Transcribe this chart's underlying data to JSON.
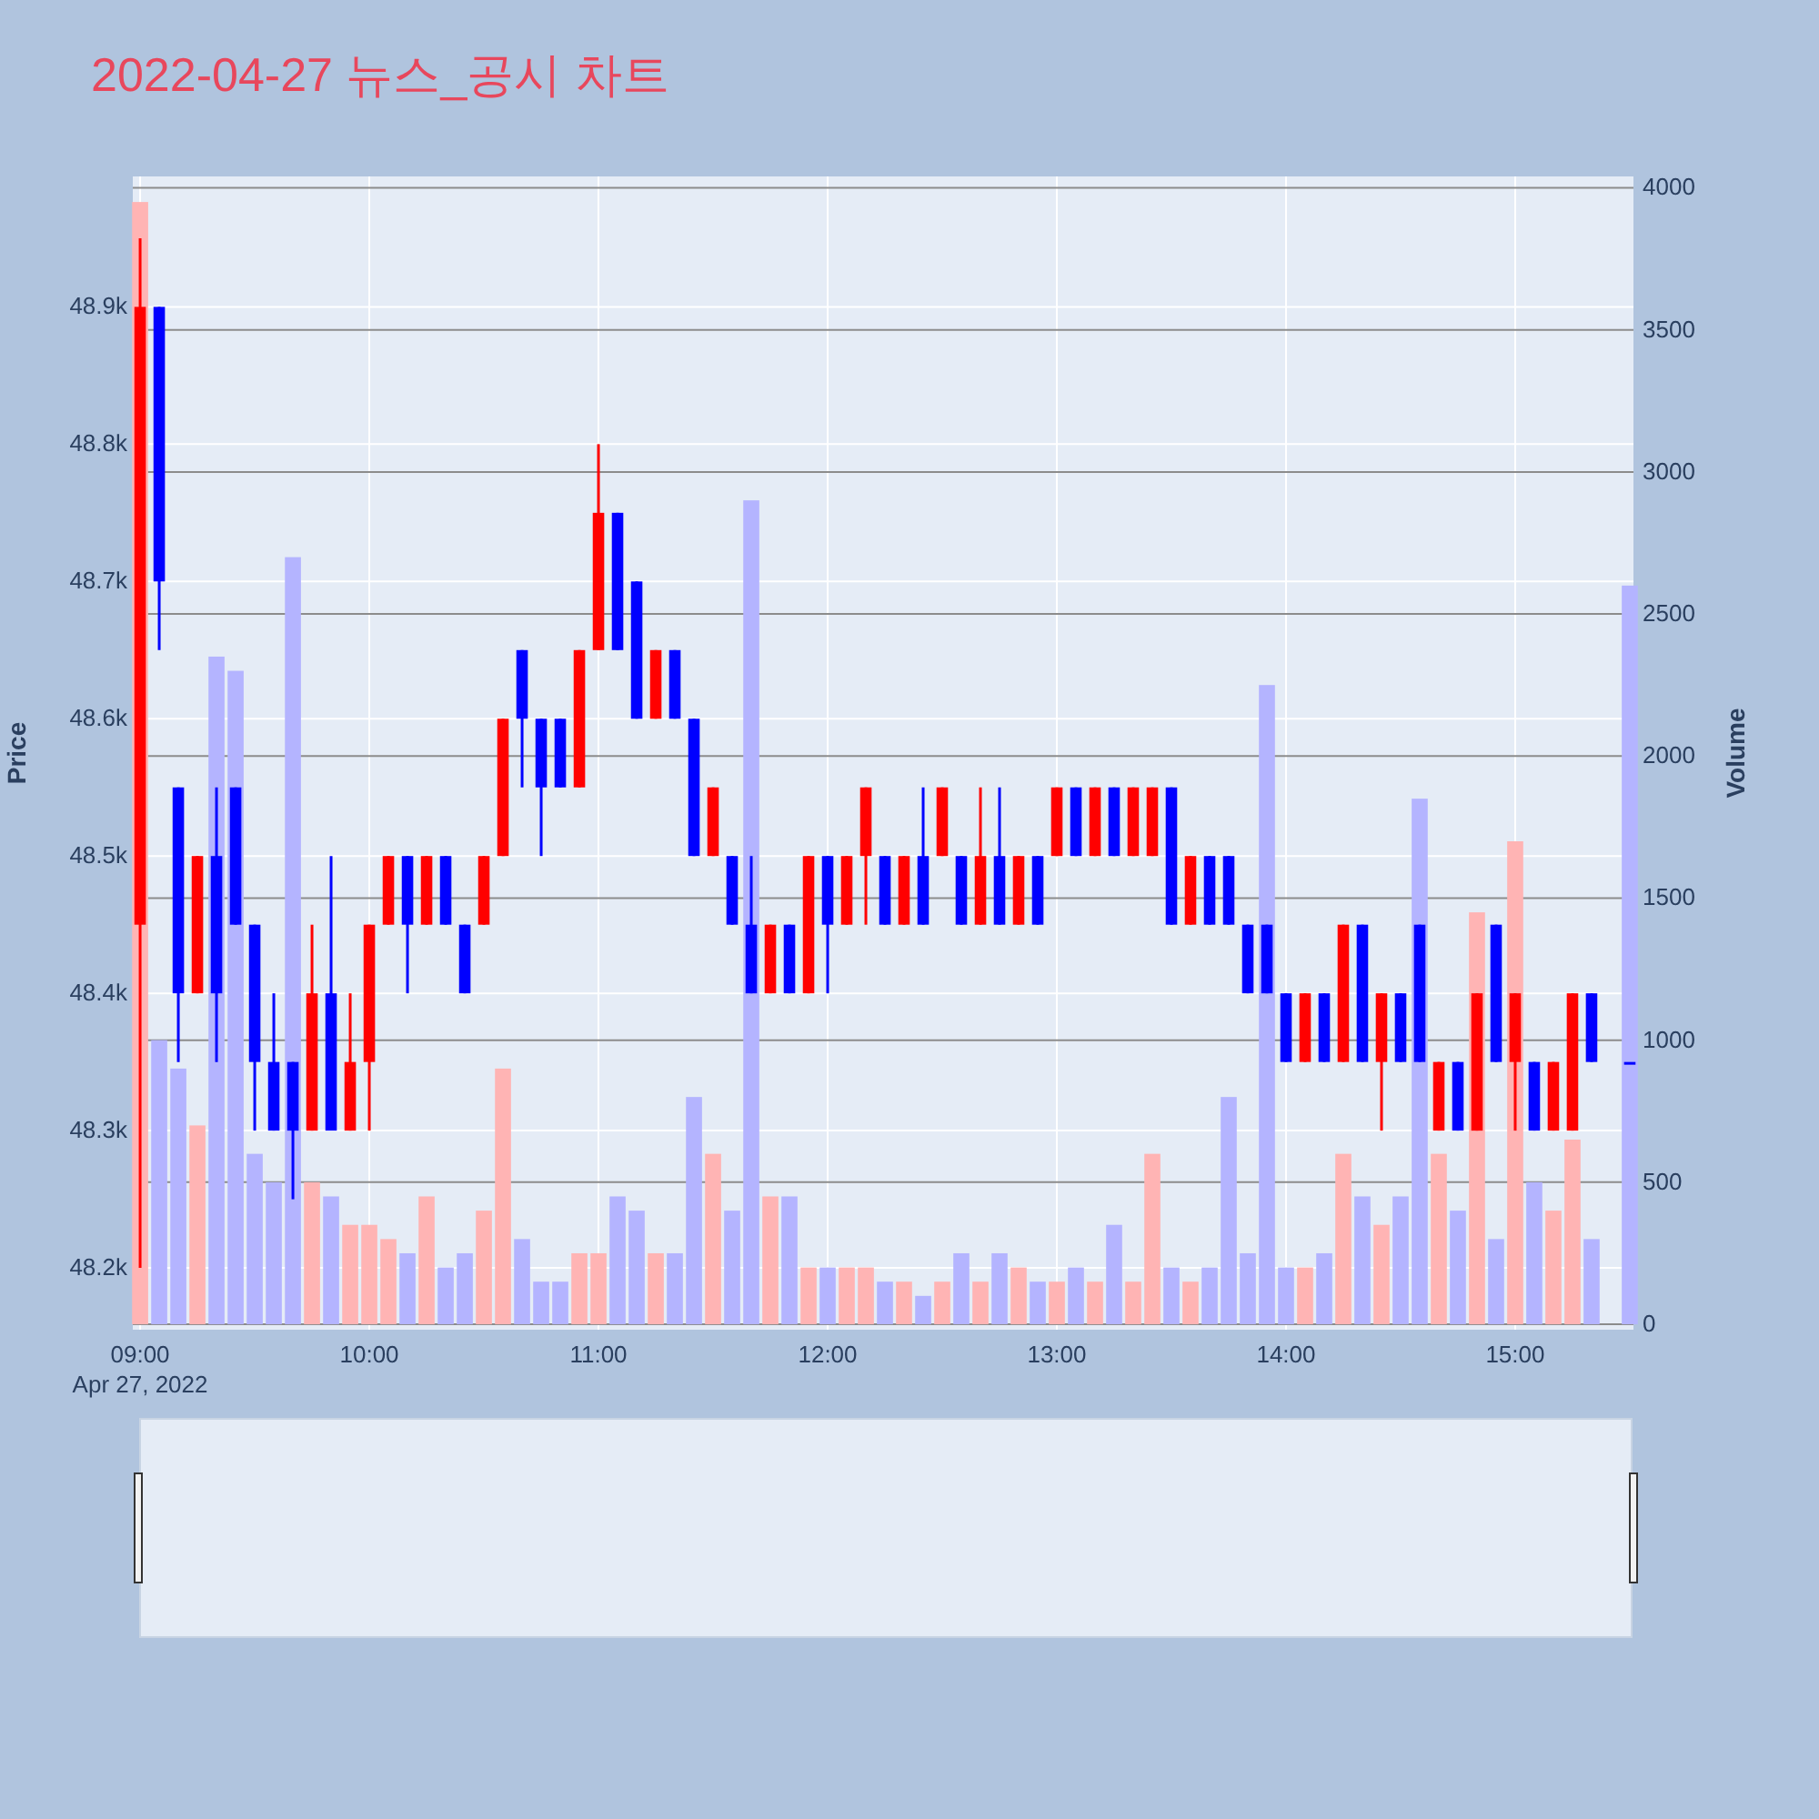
{
  "chart_data": {
    "type": "candlestick",
    "title": "2022-04-27 뉴스_공시 차트",
    "ylabel": "Price",
    "y2label": "Volume",
    "grid": true,
    "xlim": [
      8.968,
      15.516
    ],
    "xticks": [
      {
        "value": 9,
        "label": "09:00\nApr 27, 2022"
      },
      {
        "value": 10,
        "label": "10:00"
      },
      {
        "value": 11,
        "label": "11:00"
      },
      {
        "value": 12,
        "label": "12:00"
      },
      {
        "value": 13,
        "label": "13:00"
      },
      {
        "value": 14,
        "label": "14:00"
      },
      {
        "value": 15,
        "label": "15:00"
      }
    ],
    "ylim": [
      48155,
      48995
    ],
    "yticks": [
      {
        "value": 48200,
        "label": "48.2k"
      },
      {
        "value": 48300,
        "label": "48.3k"
      },
      {
        "value": 48400,
        "label": "48.4k"
      },
      {
        "value": 48500,
        "label": "48.5k"
      },
      {
        "value": 48600,
        "label": "48.6k"
      },
      {
        "value": 48700,
        "label": "48.7k"
      },
      {
        "value": 48800,
        "label": "48.8k"
      },
      {
        "value": 48900,
        "label": "48.9k"
      }
    ],
    "y2lim": [
      -19,
      4040
    ],
    "y2ticks": [
      0,
      500,
      1000,
      1500,
      2000,
      2500,
      3000,
      3500,
      4000
    ],
    "x": [
      9,
      9.0833,
      9.1667,
      9.25,
      9.3333,
      9.4167,
      9.5,
      9.5833,
      9.6667,
      9.75,
      9.8333,
      9.9167,
      10,
      10.0833,
      10.1667,
      10.25,
      10.3333,
      10.4167,
      10.5,
      10.5833,
      10.6667,
      10.75,
      10.8333,
      10.9167,
      11,
      11.0833,
      11.1667,
      11.25,
      11.3333,
      11.4167,
      11.5,
      11.5833,
      11.6667,
      11.75,
      11.8333,
      11.9167,
      12,
      12.0833,
      12.1667,
      12.25,
      12.3333,
      12.4167,
      12.5,
      12.5833,
      12.6667,
      12.75,
      12.8333,
      12.9167,
      13,
      13.0833,
      13.1667,
      13.25,
      13.3333,
      13.4167,
      13.5,
      13.5833,
      13.6667,
      13.75,
      13.8333,
      13.9167,
      14,
      14.0833,
      14.1667,
      14.25,
      14.3333,
      14.4167,
      14.5,
      14.5833,
      14.6667,
      14.75,
      14.8333,
      14.9167,
      15,
      15.0833,
      15.1667,
      15.25,
      15.3333,
      15.5
    ],
    "ohlc": [
      [
        48450,
        48950,
        48200,
        48900
      ],
      [
        48900,
        48900,
        48650,
        48700
      ],
      [
        48550,
        48550,
        48350,
        48400
      ],
      [
        48400,
        48500,
        48400,
        48500
      ],
      [
        48500,
        48550,
        48350,
        48400
      ],
      [
        48550,
        48550,
        48450,
        48450
      ],
      [
        48450,
        48450,
        48300,
        48350
      ],
      [
        48350,
        48400,
        48300,
        48300
      ],
      [
        48350,
        48350,
        48250,
        48300
      ],
      [
        48300,
        48450,
        48300,
        48400
      ],
      [
        48400,
        48500,
        48300,
        48300
      ],
      [
        48300,
        48400,
        48300,
        48350
      ],
      [
        48350,
        48450,
        48300,
        48450
      ],
      [
        48450,
        48500,
        48450,
        48500
      ],
      [
        48500,
        48500,
        48400,
        48450
      ],
      [
        48450,
        48500,
        48450,
        48500
      ],
      [
        48500,
        48500,
        48450,
        48450
      ],
      [
        48450,
        48450,
        48400,
        48400
      ],
      [
        48450,
        48500,
        48450,
        48500
      ],
      [
        48500,
        48600,
        48500,
        48600
      ],
      [
        48650,
        48650,
        48550,
        48600
      ],
      [
        48600,
        48600,
        48500,
        48550
      ],
      [
        48600,
        48600,
        48550,
        48550
      ],
      [
        48550,
        48650,
        48550,
        48650
      ],
      [
        48650,
        48800,
        48650,
        48750
      ],
      [
        48750,
        48750,
        48650,
        48650
      ],
      [
        48700,
        48700,
        48600,
        48600
      ],
      [
        48600,
        48650,
        48600,
        48650
      ],
      [
        48650,
        48650,
        48600,
        48600
      ],
      [
        48600,
        48600,
        48500,
        48500
      ],
      [
        48500,
        48550,
        48500,
        48550
      ],
      [
        48500,
        48500,
        48450,
        48450
      ],
      [
        48450,
        48500,
        48400,
        48400
      ],
      [
        48400,
        48450,
        48400,
        48450
      ],
      [
        48450,
        48450,
        48400,
        48400
      ],
      [
        48400,
        48500,
        48400,
        48500
      ],
      [
        48500,
        48500,
        48400,
        48450
      ],
      [
        48450,
        48500,
        48450,
        48500
      ],
      [
        48500,
        48550,
        48450,
        48550
      ],
      [
        48500,
        48500,
        48450,
        48450
      ],
      [
        48450,
        48500,
        48450,
        48500
      ],
      [
        48500,
        48550,
        48450,
        48450
      ],
      [
        48500,
        48550,
        48500,
        48550
      ],
      [
        48500,
        48500,
        48450,
        48450
      ],
      [
        48450,
        48550,
        48450,
        48500
      ],
      [
        48500,
        48550,
        48450,
        48450
      ],
      [
        48450,
        48500,
        48450,
        48500
      ],
      [
        48500,
        48500,
        48450,
        48450
      ],
      [
        48500,
        48550,
        48500,
        48550
      ],
      [
        48550,
        48550,
        48500,
        48500
      ],
      [
        48500,
        48550,
        48500,
        48550
      ],
      [
        48550,
        48550,
        48500,
        48500
      ],
      [
        48500,
        48550,
        48500,
        48550
      ],
      [
        48500,
        48550,
        48500,
        48550
      ],
      [
        48550,
        48550,
        48450,
        48450
      ],
      [
        48450,
        48500,
        48450,
        48500
      ],
      [
        48500,
        48500,
        48450,
        48450
      ],
      [
        48500,
        48500,
        48450,
        48450
      ],
      [
        48450,
        48450,
        48400,
        48400
      ],
      [
        48450,
        48450,
        48400,
        48400
      ],
      [
        48400,
        48400,
        48350,
        48350
      ],
      [
        48350,
        48400,
        48350,
        48400
      ],
      [
        48400,
        48400,
        48350,
        48350
      ],
      [
        48350,
        48450,
        48350,
        48450
      ],
      [
        48450,
        48450,
        48350,
        48350
      ],
      [
        48350,
        48400,
        48300,
        48400
      ],
      [
        48400,
        48400,
        48350,
        48350
      ],
      [
        48450,
        48450,
        48350,
        48350
      ],
      [
        48300,
        48350,
        48300,
        48350
      ],
      [
        48350,
        48350,
        48300,
        48300
      ],
      [
        48300,
        48400,
        48300,
        48400
      ],
      [
        48450,
        48450,
        48350,
        48350
      ],
      [
        48350,
        48400,
        48300,
        48400
      ],
      [
        48350,
        48350,
        48300,
        48300
      ],
      [
        48300,
        48350,
        48300,
        48350
      ],
      [
        48300,
        48400,
        48300,
        48400
      ],
      [
        48400,
        48400,
        48350,
        48350
      ],
      [
        48350,
        48350,
        48350,
        48350
      ]
    ],
    "colors": [
      "#ff0000",
      "#0000ff",
      "#0000ff",
      "#ff0000",
      "#0000ff",
      "#0000ff",
      "#0000ff",
      "#0000ff",
      "#0000ff",
      "#ff0000",
      "#0000ff",
      "#ff0000",
      "#ff0000",
      "#ff0000",
      "#0000ff",
      "#ff0000",
      "#0000ff",
      "#0000ff",
      "#ff0000",
      "#ff0000",
      "#0000ff",
      "#0000ff",
      "#0000ff",
      "#ff0000",
      "#ff0000",
      "#0000ff",
      "#0000ff",
      "#ff0000",
      "#0000ff",
      "#0000ff",
      "#ff0000",
      "#0000ff",
      "#0000ff",
      "#ff0000",
      "#0000ff",
      "#ff0000",
      "#0000ff",
      "#ff0000",
      "#ff0000",
      "#0000ff",
      "#ff0000",
      "#0000ff",
      "#ff0000",
      "#0000ff",
      "#ff0000",
      "#0000ff",
      "#ff0000",
      "#0000ff",
      "#ff0000",
      "#0000ff",
      "#ff0000",
      "#0000ff",
      "#ff0000",
      "#ff0000",
      "#0000ff",
      "#ff0000",
      "#0000ff",
      "#0000ff",
      "#0000ff",
      "#0000ff",
      "#0000ff",
      "#ff0000",
      "#0000ff",
      "#ff0000",
      "#0000ff",
      "#ff0000",
      "#0000ff",
      "#0000ff",
      "#ff0000",
      "#0000ff",
      "#ff0000",
      "#0000ff",
      "#ff0000",
      "#0000ff",
      "#ff0000",
      "#ff0000",
      "#0000ff",
      "#0000ff"
    ],
    "series": [
      {
        "type": "bar",
        "axis": "y2",
        "values": [
          3950,
          1000,
          900,
          700,
          2350,
          2300,
          600,
          500,
          2700,
          500,
          450,
          350,
          350,
          300,
          250,
          450,
          200,
          250,
          400,
          900,
          300,
          150,
          150,
          250,
          250,
          450,
          400,
          250,
          250,
          800,
          600,
          400,
          2900,
          450,
          450,
          200,
          200,
          200,
          200,
          150,
          150,
          100,
          150,
          250,
          150,
          250,
          200,
          150,
          150,
          200,
          150,
          350,
          150,
          600,
          200,
          150,
          200,
          800,
          250,
          2250,
          200,
          200,
          250,
          600,
          450,
          350,
          450,
          1850,
          600,
          400,
          1450,
          300,
          1700,
          500,
          400,
          650,
          300,
          2600
        ],
        "colors": [
          "#ffb4b4",
          "#b4b4ff",
          "#b4b4ff",
          "#ffb4b4",
          "#b4b4ff",
          "#b4b4ff",
          "#b4b4ff",
          "#b4b4ff",
          "#b4b4ff",
          "#ffb4b4",
          "#b4b4ff",
          "#ffb4b4",
          "#ffb4b4",
          "#ffb4b4",
          "#b4b4ff",
          "#ffb4b4",
          "#b4b4ff",
          "#b4b4ff",
          "#ffb4b4",
          "#ffb4b4",
          "#b4b4ff",
          "#b4b4ff",
          "#b4b4ff",
          "#ffb4b4",
          "#ffb4b4",
          "#b4b4ff",
          "#b4b4ff",
          "#ffb4b4",
          "#b4b4ff",
          "#b4b4ff",
          "#ffb4b4",
          "#b4b4ff",
          "#b4b4ff",
          "#ffb4b4",
          "#b4b4ff",
          "#ffb4b4",
          "#b4b4ff",
          "#ffb4b4",
          "#ffb4b4",
          "#b4b4ff",
          "#ffb4b4",
          "#b4b4ff",
          "#ffb4b4",
          "#b4b4ff",
          "#ffb4b4",
          "#b4b4ff",
          "#ffb4b4",
          "#b4b4ff",
          "#ffb4b4",
          "#b4b4ff",
          "#ffb4b4",
          "#b4b4ff",
          "#ffb4b4",
          "#ffb4b4",
          "#b4b4ff",
          "#ffb4b4",
          "#b4b4ff",
          "#b4b4ff",
          "#b4b4ff",
          "#b4b4ff",
          "#b4b4ff",
          "#ffb4b4",
          "#b4b4ff",
          "#ffb4b4",
          "#b4b4ff",
          "#ffb4b4",
          "#b4b4ff",
          "#b4b4ff",
          "#ffb4b4",
          "#b4b4ff",
          "#ffb4b4",
          "#b4b4ff",
          "#ffb4b4",
          "#b4b4ff",
          "#ffb4b4",
          "#ffb4b4",
          "#b4b4ff",
          "#b4b4ff"
        ]
      }
    ]
  }
}
